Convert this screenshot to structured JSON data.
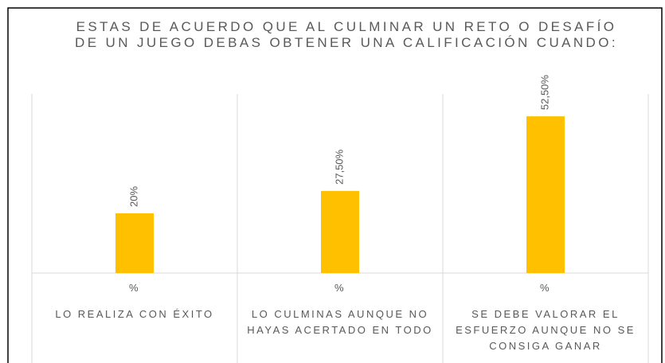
{
  "chart_data": {
    "type": "bar",
    "title": "ESTAS DE ACUERDO QUE AL CULMINAR UN RETO O DESAFÍO DE UN JUEGO DEBAS OBTENER UNA CALIFICACIÓN CUANDO:",
    "categories": [
      "LO REALIZA CON ÉXITO",
      "LO CULMINAS AUNQUE NO HAYAS ACERTADO EN TODO",
      "SE DEBE VALORAR EL ESFUERZO AUNQUE NO SE CONSIGA GANAR"
    ],
    "subcategories": [
      "%",
      "%",
      "%"
    ],
    "values": [
      20,
      27.5,
      52.5
    ],
    "value_labels": [
      "20%",
      "27,50%",
      "52,50%"
    ],
    "color": "#ffc000",
    "ylim": [
      0,
      60
    ]
  }
}
